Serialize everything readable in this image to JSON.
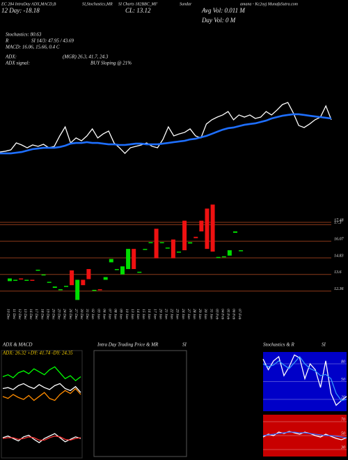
{
  "header": {
    "title_a": "EC 284 IntraDay ADX,MACD,B",
    "title_b": "SI,Stochastics,MR",
    "title_c": "SI Charts 182BBC_MF",
    "title_d": "Sundar",
    "title_e": "amana - Kc2oyj MunafaSutra.com",
    "day12": "12 Day: -18.18",
    "close": "CL: 13.12",
    "avg_vol": "Avg Vol: 0.011 M",
    "day_vol": "Day Vol: 0  M",
    "stoch": "Stochastics: 80.63",
    "rsi_r": "R",
    "rsi": "SI 14/3: 47.95 / 43.69",
    "macd": "MACD: 16.06, 15.66, 0.4 C",
    "adx_label": "ADX:",
    "adx": "(MGR) 26.3, 41.7, 24.3",
    "adx_signal_label": "ADX  signal:",
    "adx_signal": "BUY Sloping @ 21%",
    "intraday_title": "Intra  Day Trading Price  & MR",
    "intraday_si": "SI"
  },
  "chart_data": [
    {
      "type": "line",
      "ylim": [
        11,
        19
      ],
      "series": [
        {
          "color": "#ffffff",
          "values": [
            13.58,
            13.65,
            13.77,
            14.38,
            14.2,
            13.95,
            14.2,
            14.08,
            14.26,
            13.95,
            14.08,
            15.0,
            15.8,
            14.38,
            14.82,
            14.57,
            15.0,
            15.62,
            14.82,
            15.18,
            15.43,
            14.38,
            13.95,
            13.46,
            13.95,
            14.08,
            14.2,
            14.38,
            14.08,
            13.95,
            14.69,
            15.8,
            15.0,
            15.18,
            15.31,
            15.62,
            15.0,
            14.82,
            16.05,
            16.42,
            16.66,
            16.85,
            17.15,
            16.42,
            16.85,
            16.66,
            16.85,
            16.54,
            16.66,
            17.15,
            16.85,
            17.28,
            17.77,
            17.95,
            17.03,
            15.92,
            15.74,
            16.05,
            16.42,
            16.66,
            17.65,
            16.42
          ]
        },
        {
          "color": "#1e6fff",
          "values": [
            13.46,
            13.46,
            13.46,
            13.52,
            13.58,
            13.71,
            13.83,
            13.89,
            13.95,
            13.95,
            13.95,
            14.02,
            14.14,
            14.32,
            14.38,
            14.38,
            14.45,
            14.38,
            14.38,
            14.32,
            14.26,
            14.26,
            14.2,
            14.2,
            14.26,
            14.32,
            14.32,
            14.26,
            14.26,
            14.26,
            14.32,
            14.38,
            14.45,
            14.51,
            14.57,
            14.69,
            14.75,
            14.88,
            15.0,
            15.18,
            15.37,
            15.55,
            15.68,
            15.74,
            15.86,
            15.98,
            16.05,
            16.11,
            16.23,
            16.35,
            16.54,
            16.66,
            16.78,
            16.85,
            16.91,
            16.91,
            16.85,
            16.78,
            16.72,
            16.66,
            16.6,
            16.54
          ]
        }
      ]
    },
    {
      "type": "candlestick",
      "ylim": [
        11.2,
        19.5
      ],
      "yticks": [
        17.48,
        17.3,
        16.07,
        14.83,
        13.6,
        12.36
      ],
      "up_color": "#00dd00",
      "down_color": "#ee1111",
      "grid_color": "#8b3a1a",
      "categories": [
        "10 Dec",
        "11 Dec",
        "12 Dec",
        "13 Dec",
        "16 Dec",
        "17 Dec",
        "18 Dec",
        "19 Dec",
        "20 Dec",
        "23 Dec",
        "24 Dec",
        "26 Dec",
        "27 Dec",
        "30 Dec",
        "31 Dec",
        "02 Jan",
        "03 Jan",
        "06 Jan",
        "07 Jan",
        "08 Jan",
        "09 Jan",
        "10 Jan",
        "13 Jan",
        "14 Jan",
        "15 Jan",
        "16 Jan",
        "17 Jan",
        "20 Jan",
        "21 Jan",
        "22 Jan",
        "23 Jan",
        "24 Jan",
        "27 Jan",
        "28 Jan",
        "29 Jan",
        "30 Jan",
        "31 Jan",
        "03 Feb",
        "04 Feb",
        "05 Feb",
        "06 Feb",
        "07 Feb"
      ],
      "open": [
        13.1,
        13.2,
        13.3,
        13.15,
        13.2,
        13.9,
        13.6,
        13.0,
        12.6,
        12.45,
        12.7,
        13.9,
        11.7,
        13.2,
        14.0,
        12.4,
        12.5,
        13.2,
        14.5,
        14.0,
        13.6,
        14.0,
        15.5,
        13.8,
        15.5,
        16.0,
        17.0,
        16.0,
        15.6,
        16.2,
        15.3,
        17.6,
        15.9,
        16.4,
        17.6,
        18.5,
        18.8,
        14.85,
        14.9,
        15.0,
        16.7,
        15.4
      ],
      "close": [
        13.3,
        13.2,
        13.25,
        13.2,
        13.15,
        13.95,
        13.6,
        13.05,
        12.7,
        12.5,
        12.75,
        12.8,
        13.2,
        12.8,
        13.25,
        12.45,
        12.45,
        13.4,
        14.75,
        14.0,
        14.2,
        15.5,
        14.0,
        13.8,
        15.5,
        16.0,
        14.8,
        16.0,
        15.6,
        14.8,
        15.3,
        15.4,
        16.0,
        16.3,
        16.8,
        15.5,
        15.3,
        14.9,
        14.95,
        15.4,
        16.8,
        15.4
      ]
    },
    {
      "type": "line",
      "title": "ADX  & MACD",
      "subtitle": "ADX: 26.32  +DY: 41.74  -DY: 24.35",
      "ylim": [
        0,
        60
      ],
      "series": [
        {
          "color": "#00ff00",
          "values": [
            42,
            44,
            41,
            46,
            48,
            45,
            50,
            47,
            44,
            49,
            52,
            46,
            40,
            43,
            38,
            42
          ]
        },
        {
          "color": "#ff8c00",
          "values": [
            22,
            20,
            24,
            21,
            19,
            23,
            18,
            22,
            26,
            20,
            18,
            24,
            28,
            25,
            30,
            24
          ]
        },
        {
          "color": "#ffffff",
          "values": [
            30,
            31,
            29,
            33,
            35,
            32,
            30,
            34,
            31,
            29,
            33,
            35,
            30,
            28,
            32,
            26
          ]
        }
      ]
    },
    {
      "type": "line",
      "ylim": [
        -2,
        2
      ],
      "series": [
        {
          "color": "#ffffff",
          "values": [
            0.3,
            0.5,
            0.2,
            -0.1,
            0.4,
            0.6,
            0.1,
            -0.3,
            0.2,
            0.5,
            0.8,
            0.3,
            -0.2,
            0.1,
            0.4,
            0.2
          ]
        },
        {
          "color": "#ff3333",
          "values": [
            0.2,
            0.3,
            0.3,
            0.1,
            0.2,
            0.4,
            0.3,
            0.0,
            0.0,
            0.3,
            0.5,
            0.4,
            0.1,
            0.0,
            0.2,
            0.3
          ]
        }
      ]
    },
    {
      "type": "line",
      "title": "Stochastics & R",
      "subtitle": "SI",
      "ylim": [
        0,
        100
      ],
      "yticks": [
        80,
        50,
        20
      ],
      "background": "#0000c8",
      "series": [
        {
          "color": "#ffffff",
          "values": [
            88,
            70,
            85,
            92,
            60,
            75,
            95,
            90,
            55,
            80,
            70,
            40,
            85,
            30,
            10,
            18,
            25
          ]
        },
        {
          "color": "#3399ff",
          "values": [
            80,
            75,
            78,
            85,
            78,
            72,
            82,
            92,
            80,
            72,
            68,
            60,
            62,
            55,
            30,
            18,
            20
          ]
        }
      ]
    },
    {
      "type": "line",
      "ylim": [
        20,
        80
      ],
      "yticks": [
        70,
        50,
        30
      ],
      "background": "#c80000",
      "series": [
        {
          "color": "#ffffff",
          "values": [
            48,
            52,
            50,
            55,
            53,
            56,
            54,
            52,
            55,
            53,
            50,
            48,
            52,
            49,
            46,
            44,
            47
          ]
        },
        {
          "color": "#3366ff",
          "values": [
            50,
            51,
            52,
            53,
            54,
            55,
            55,
            54,
            54,
            53,
            52,
            51,
            50,
            50,
            49,
            48,
            47
          ]
        }
      ]
    }
  ]
}
